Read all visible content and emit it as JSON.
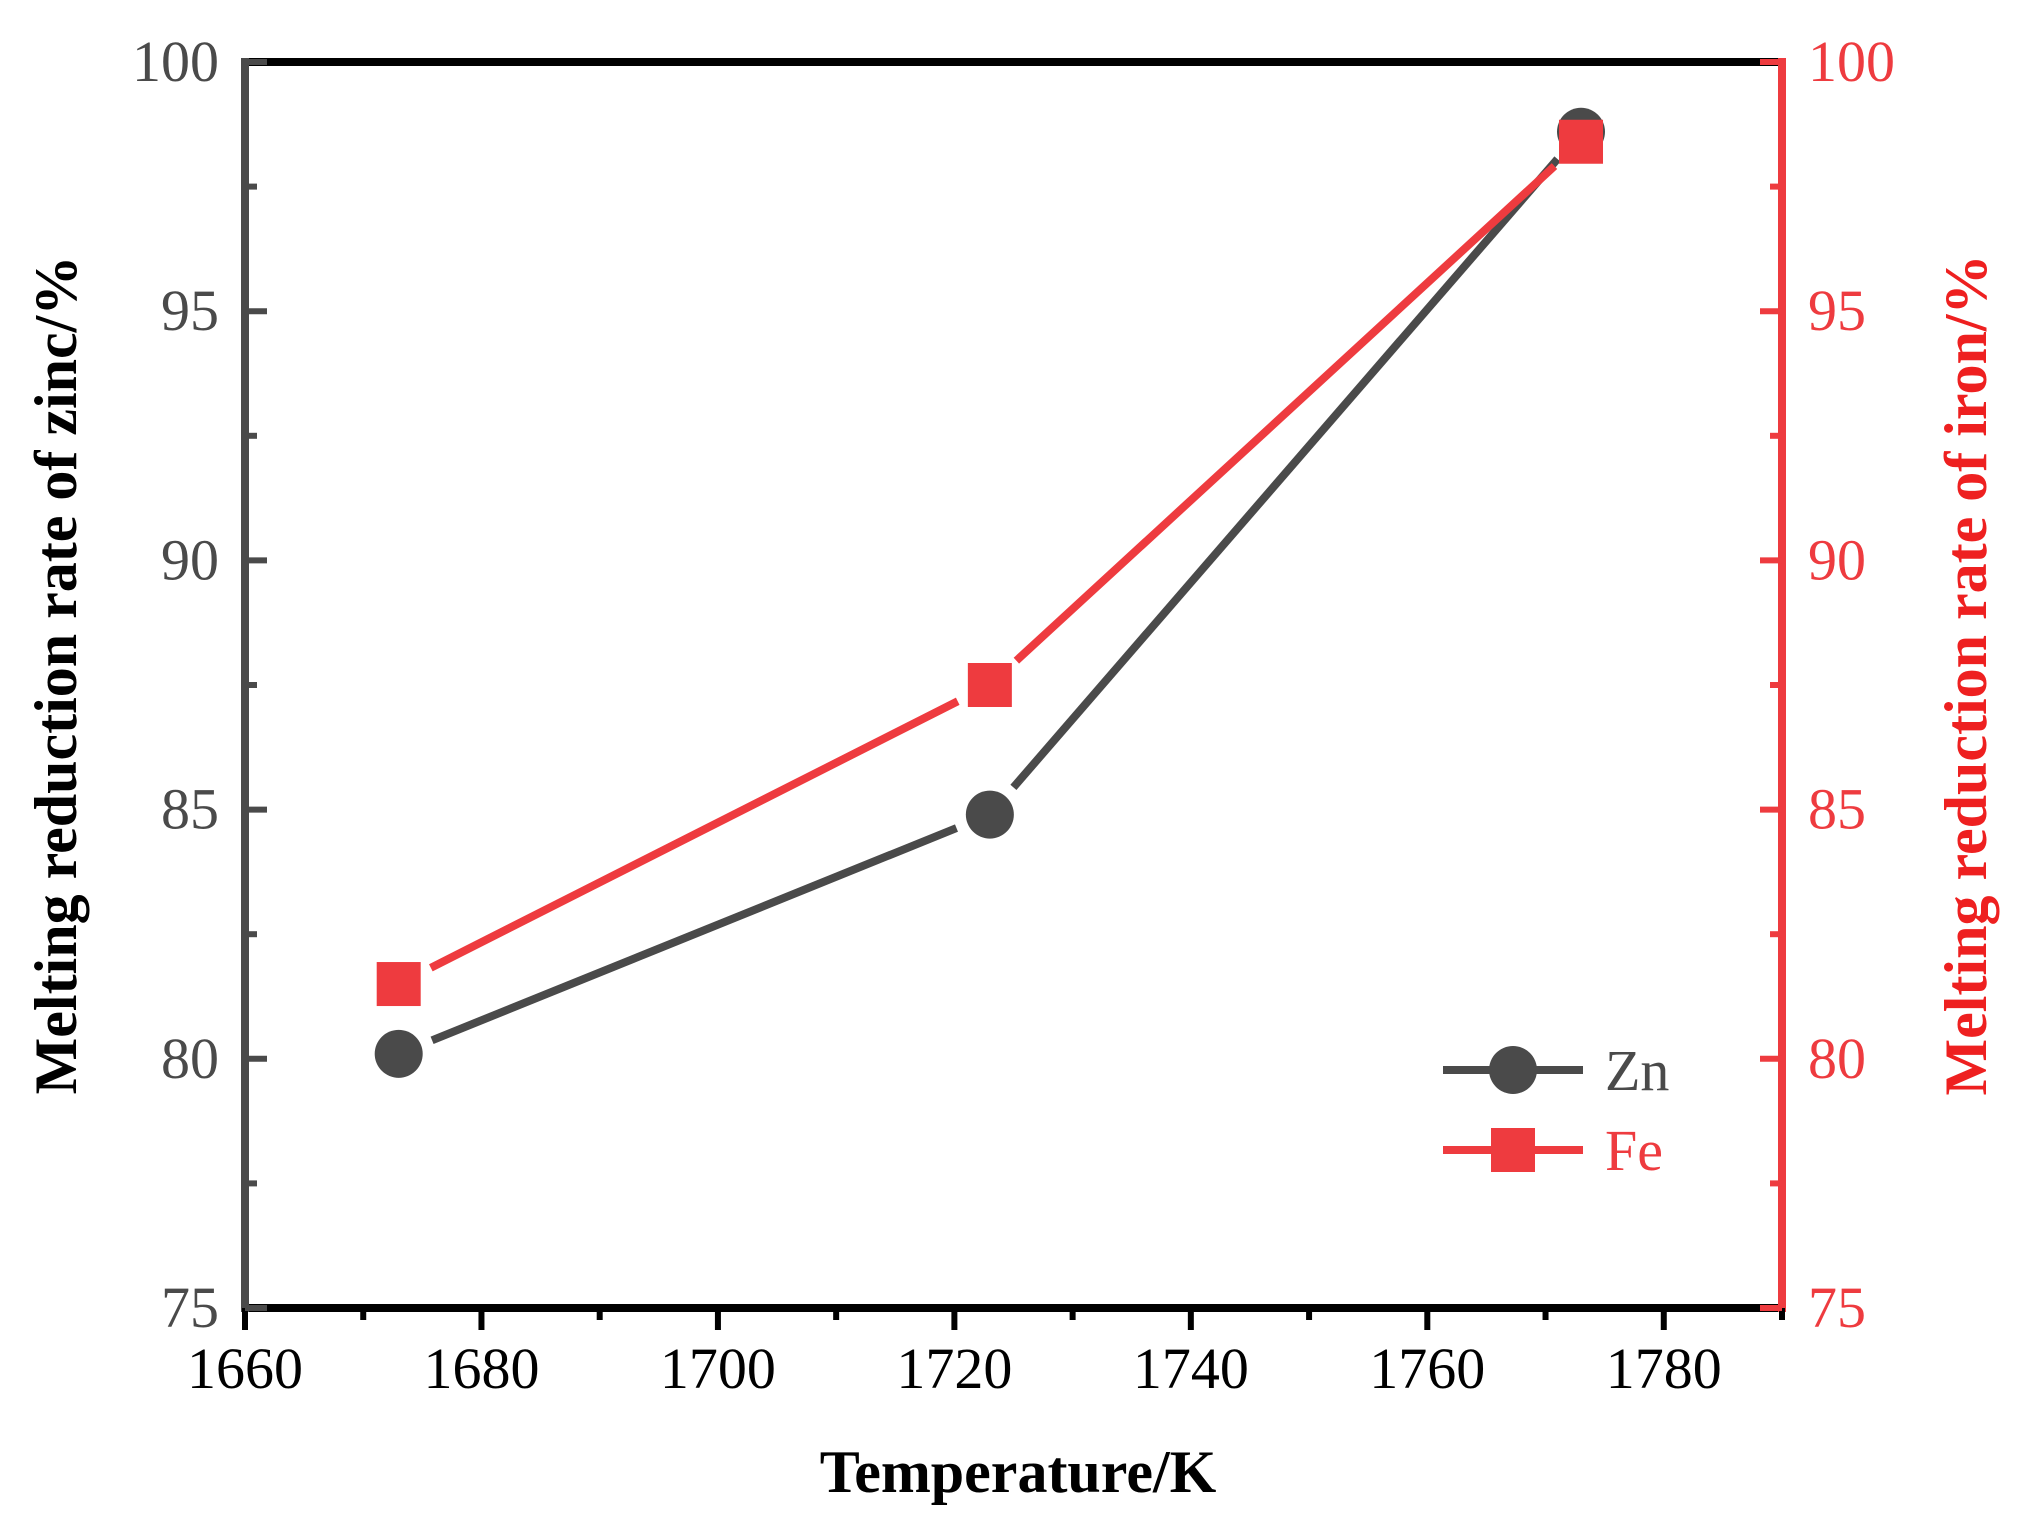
{
  "chart_data": {
    "type": "line",
    "title": "",
    "xlabel": "Temperature/K",
    "ylabel_left": "Melting reduction rate of zinc/%",
    "ylabel_right": "Melting reduction rate of iron/%",
    "xlim": [
      1660,
      1790
    ],
    "ylim": [
      75,
      100
    ],
    "y2lim": [
      75,
      100
    ],
    "x_ticks": [
      1660,
      1680,
      1700,
      1720,
      1740,
      1760,
      1780
    ],
    "y_ticks": [
      75,
      80,
      85,
      90,
      95,
      100
    ],
    "y2_ticks": [
      75,
      80,
      85,
      90,
      95,
      100
    ],
    "grid": false,
    "legend_position": "bottom-right",
    "series": [
      {
        "name": "Zn",
        "axis": "left",
        "marker": "circle",
        "color": "#4a4a4a",
        "x": [
          1673,
          1723,
          1773
        ],
        "values": [
          80.1,
          84.9,
          98.6
        ]
      },
      {
        "name": "Fe",
        "axis": "right",
        "marker": "square",
        "color": "#ee3b3f",
        "x": [
          1673,
          1723,
          1773
        ],
        "values": [
          81.5,
          87.5,
          98.4
        ]
      }
    ],
    "colors": {
      "frame": "#000000",
      "left_axis": "#4a4a4a",
      "right_axis": "#ee3b3f",
      "left_title": "#000000",
      "right_title": "#ee2020"
    }
  }
}
